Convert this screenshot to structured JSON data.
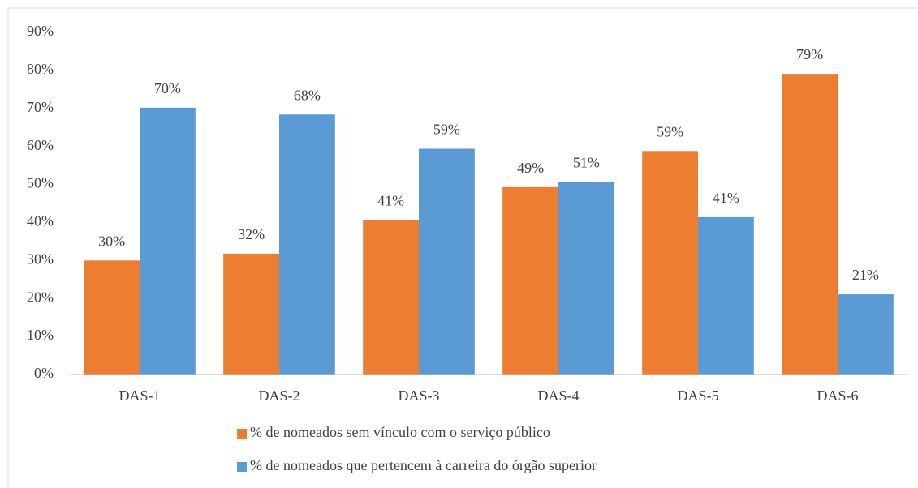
{
  "chart_data": {
    "type": "bar",
    "categories": [
      "DAS-1",
      "DAS-2",
      "DAS-3",
      "DAS-4",
      "DAS-5",
      "DAS-6"
    ],
    "series": [
      {
        "name": "% de nomeados sem vínculo com o serviço público",
        "color": "#ed7d31",
        "values": [
          30,
          31.8,
          40.7,
          49.3,
          58.8,
          79.1
        ],
        "value_labels": [
          "30%",
          "32%",
          "41%",
          "49%",
          "59%",
          "79%"
        ]
      },
      {
        "name": "% de nomeados que pertencem à carreira do órgão superior",
        "color": "#5b9bd5",
        "values": [
          70.2,
          68.4,
          59.4,
          50.7,
          41.4,
          21.1
        ],
        "value_labels": [
          "70%",
          "68%",
          "59%",
          "51%",
          "41%",
          "21%"
        ]
      }
    ],
    "ylim": [
      0,
      90
    ],
    "yticks": [
      {
        "value": 0,
        "label": "0%"
      },
      {
        "value": 10,
        "label": "10%"
      },
      {
        "value": 20,
        "label": "20%"
      },
      {
        "value": 30,
        "label": "30%"
      },
      {
        "value": 40,
        "label": "40%"
      },
      {
        "value": 50,
        "label": "50%"
      },
      {
        "value": 60,
        "label": "60%"
      },
      {
        "value": 70,
        "label": "70%"
      },
      {
        "value": 80,
        "label": "80%"
      },
      {
        "value": 90,
        "label": "90%"
      }
    ],
    "grid": false
  }
}
